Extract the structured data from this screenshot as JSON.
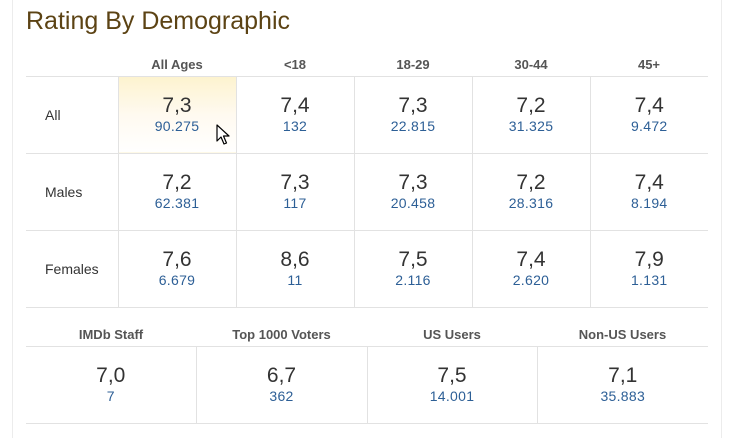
{
  "title": "Rating By Demographic",
  "age_headers": [
    "All Ages",
    "<18",
    "18-29",
    "30-44",
    "45+"
  ],
  "rows": [
    {
      "label": "All",
      "cells": [
        {
          "rating": "7,3",
          "votes": "90.275"
        },
        {
          "rating": "7,4",
          "votes": "132"
        },
        {
          "rating": "7,3",
          "votes": "22.815"
        },
        {
          "rating": "7,2",
          "votes": "31.325"
        },
        {
          "rating": "7,4",
          "votes": "9.472"
        }
      ]
    },
    {
      "label": "Males",
      "cells": [
        {
          "rating": "7,2",
          "votes": "62.381"
        },
        {
          "rating": "7,3",
          "votes": "117"
        },
        {
          "rating": "7,3",
          "votes": "20.458"
        },
        {
          "rating": "7,2",
          "votes": "28.316"
        },
        {
          "rating": "7,4",
          "votes": "8.194"
        }
      ]
    },
    {
      "label": "Females",
      "cells": [
        {
          "rating": "7,6",
          "votes": "6.679"
        },
        {
          "rating": "8,6",
          "votes": "11"
        },
        {
          "rating": "7,5",
          "votes": "2.116"
        },
        {
          "rating": "7,4",
          "votes": "2.620"
        },
        {
          "rating": "7,9",
          "votes": "1.131"
        }
      ]
    }
  ],
  "user_groups": [
    {
      "header": "IMDb Staff",
      "rating": "7,0",
      "votes": "7"
    },
    {
      "header": "Top 1000 Voters",
      "rating": "6,7",
      "votes": "362"
    },
    {
      "header": "US Users",
      "rating": "7,5",
      "votes": "14.001"
    },
    {
      "header": "Non-US Users",
      "rating": "7,1",
      "votes": "35.883"
    }
  ],
  "colors": {
    "title": "#5c4314",
    "votes_link": "#2d5f96",
    "highlight": "#fdf3cf"
  },
  "icons": {
    "cursor": "mouse-pointer-icon"
  }
}
